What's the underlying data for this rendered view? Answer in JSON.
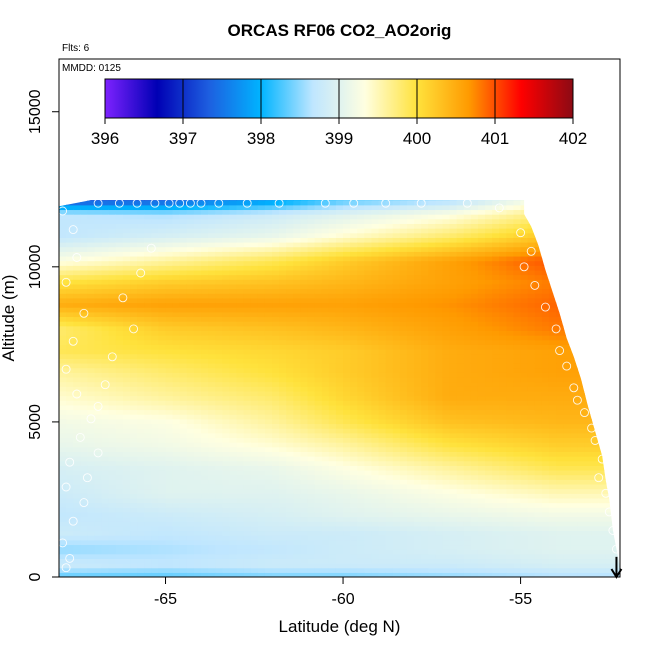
{
  "chart_data": {
    "type": "heatmap",
    "title": "ORCAS RF06 CO2_AO2orig",
    "subtitle": "Flts: 6",
    "date_note": "MMDD: 0125",
    "xlabel": "Latitude (deg N)",
    "ylabel": "Altitude (m)",
    "xlim": [
      -68.0,
      -52.2
    ],
    "ylim": [
      0,
      16700
    ],
    "x_ticks": [
      {
        "value": -65,
        "label": "-65"
      },
      {
        "value": -60,
        "label": "-60"
      },
      {
        "value": -55,
        "label": "-55"
      }
    ],
    "y_ticks": [
      {
        "value": 0,
        "label": "0"
      },
      {
        "value": 5000,
        "label": "5000"
      },
      {
        "value": 10000,
        "label": "10000"
      },
      {
        "value": 15000,
        "label": "15000"
      }
    ],
    "colorbar": {
      "min": 396,
      "max": 402,
      "ticks": [
        "396",
        "397",
        "398",
        "399",
        "400",
        "401",
        "402"
      ],
      "stops": [
        "#7e22ff",
        "#0000b4",
        "#1d5fe0",
        "#00b4ff",
        "#bfe6ff",
        "#ffffe0",
        "#ffe23c",
        "#ff9a00",
        "#ff0000",
        "#8c0a14"
      ]
    },
    "domain_edge": [
      [
        -68.0,
        11950
      ],
      [
        -67.1,
        12150
      ],
      [
        -54.9,
        12150
      ],
      [
        -54.9,
        11700
      ],
      [
        -54.7,
        11300
      ],
      [
        -54.5,
        10700
      ],
      [
        -54.3,
        9900
      ],
      [
        -54.1,
        9200
      ],
      [
        -53.9,
        8500
      ],
      [
        -53.7,
        7700
      ],
      [
        -53.5,
        7100
      ],
      [
        -53.3,
        6400
      ],
      [
        -53.1,
        5500
      ],
      [
        -52.9,
        4700
      ],
      [
        -52.7,
        3900
      ],
      [
        -52.6,
        3100
      ],
      [
        -52.5,
        2500
      ],
      [
        -52.4,
        1500
      ],
      [
        -52.2,
        300
      ],
      [
        -52.2,
        0
      ]
    ],
    "lat_nodes": [
      -68,
      -65,
      -62,
      -60,
      -57,
      -54
    ],
    "layers": [
      {
        "alt": 0,
        "values": [
          398.3,
          398.3,
          398.4,
          398.4,
          398.5,
          398.6
        ]
      },
      {
        "alt": 400,
        "values": [
          398.8,
          398.7,
          398.8,
          398.8,
          398.8,
          398.9
        ]
      },
      {
        "alt": 900,
        "values": [
          398.5,
          398.6,
          398.7,
          398.8,
          398.9,
          399.0
        ]
      },
      {
        "alt": 1400,
        "values": [
          398.8,
          398.7,
          398.8,
          398.8,
          398.9,
          399.0
        ]
      },
      {
        "alt": 2000,
        "values": [
          398.7,
          398.8,
          398.9,
          399.0,
          399.1,
          399.2
        ]
      },
      {
        "alt": 2700,
        "values": [
          398.8,
          399.0,
          399.0,
          399.1,
          399.3,
          399.5
        ]
      },
      {
        "alt": 3500,
        "values": [
          398.9,
          399.0,
          399.1,
          399.3,
          399.6,
          399.9
        ]
      },
      {
        "alt": 4300,
        "values": [
          399.1,
          399.2,
          399.4,
          399.6,
          400.0,
          400.2
        ]
      },
      {
        "alt": 5000,
        "values": [
          399.2,
          399.3,
          399.6,
          399.9,
          400.3,
          400.4
        ]
      },
      {
        "alt": 5800,
        "values": [
          399.4,
          399.6,
          399.8,
          400.1,
          400.5,
          400.5
        ]
      },
      {
        "alt": 6600,
        "values": [
          399.6,
          399.8,
          400.0,
          400.2,
          400.5,
          400.6
        ]
      },
      {
        "alt": 7300,
        "values": [
          399.9,
          400.0,
          400.1,
          400.2,
          400.5,
          400.6
        ]
      },
      {
        "alt": 8000,
        "values": [
          399.8,
          400.2,
          400.3,
          400.4,
          400.6,
          400.8
        ]
      },
      {
        "alt": 8800,
        "values": [
          400.5,
          400.6,
          400.6,
          400.6,
          400.7,
          400.9
        ]
      },
      {
        "alt": 9500,
        "values": [
          400.0,
          400.2,
          400.3,
          400.4,
          400.6,
          400.8
        ]
      },
      {
        "alt": 10200,
        "values": [
          399.3,
          399.6,
          399.9,
          400.2,
          400.6,
          401.0
        ]
      },
      {
        "alt": 11000,
        "values": [
          398.7,
          398.9,
          399.1,
          399.4,
          399.8,
          400.3
        ]
      },
      {
        "alt": 11700,
        "values": [
          398.7,
          398.6,
          398.8,
          399.0,
          399.3,
          399.8
        ]
      },
      {
        "alt": 12150,
        "values": [
          397.2,
          397.3,
          397.8,
          398.3,
          398.6,
          399.4
        ]
      }
    ],
    "observations": [
      [
        -67.8,
        300
      ],
      [
        -67.7,
        600
      ],
      [
        -67.9,
        1100
      ],
      [
        -67.6,
        1800
      ],
      [
        -67.3,
        2400
      ],
      [
        -67.8,
        2900
      ],
      [
        -67.2,
        3200
      ],
      [
        -67.7,
        3700
      ],
      [
        -66.9,
        4000
      ],
      [
        -67.4,
        4500
      ],
      [
        -67.1,
        5100
      ],
      [
        -66.9,
        5500
      ],
      [
        -67.5,
        5900
      ],
      [
        -66.7,
        6200
      ],
      [
        -67.8,
        6700
      ],
      [
        -66.5,
        7100
      ],
      [
        -67.6,
        7600
      ],
      [
        -65.9,
        8000
      ],
      [
        -67.3,
        8500
      ],
      [
        -66.2,
        9000
      ],
      [
        -67.8,
        9500
      ],
      [
        -65.7,
        9800
      ],
      [
        -67.5,
        10300
      ],
      [
        -65.4,
        10600
      ],
      [
        -67.6,
        11200
      ],
      [
        -67.9,
        11800
      ],
      [
        -66.9,
        12050
      ],
      [
        -66.3,
        12050
      ],
      [
        -65.8,
        12050
      ],
      [
        -65.3,
        12050
      ],
      [
        -64.9,
        12050
      ],
      [
        -64.6,
        12050
      ],
      [
        -64.3,
        12050
      ],
      [
        -64.0,
        12050
      ],
      [
        -63.5,
        12050
      ],
      [
        -62.7,
        12050
      ],
      [
        -61.8,
        12050
      ],
      [
        -60.5,
        12050
      ],
      [
        -59.7,
        12050
      ],
      [
        -58.8,
        12050
      ],
      [
        -57.8,
        12050
      ],
      [
        -56.5,
        12050
      ],
      [
        -55.6,
        11900
      ],
      [
        -55.0,
        11100
      ],
      [
        -54.7,
        10500
      ],
      [
        -54.9,
        10000
      ],
      [
        -54.6,
        9400
      ],
      [
        -54.3,
        8700
      ],
      [
        -54.0,
        8000
      ],
      [
        -53.9,
        7300
      ],
      [
        -53.7,
        6800
      ],
      [
        -53.5,
        6100
      ],
      [
        -53.4,
        5700
      ],
      [
        -53.2,
        5300
      ],
      [
        -53.0,
        4800
      ],
      [
        -52.9,
        4400
      ],
      [
        -52.7,
        3800
      ],
      [
        -52.8,
        3200
      ],
      [
        -52.6,
        2700
      ],
      [
        -52.5,
        2100
      ],
      [
        -52.4,
        1500
      ],
      [
        -52.3,
        900
      ]
    ],
    "annotation_arrow": {
      "lat": -52.3,
      "alt_from": 650,
      "alt_to": 0
    }
  }
}
